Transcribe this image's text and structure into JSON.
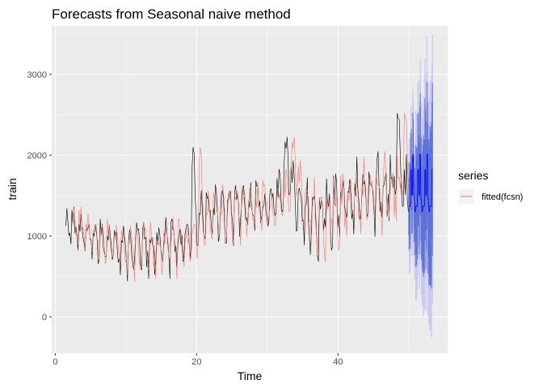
{
  "chart_data": {
    "type": "line",
    "title": "Forecasts from Seasonal naive method",
    "xlabel": "Time",
    "ylabel": "train",
    "xlim": [
      -0.5,
      55.5
    ],
    "ylim": [
      -450,
      3600
    ],
    "x_ticks": [
      0,
      20,
      40
    ],
    "x_tick_labels": [
      "0",
      "20",
      "40"
    ],
    "y_ticks": [
      0,
      1000,
      2000,
      3000
    ],
    "y_tick_labels": [
      "0",
      "1000",
      "2000",
      "3000"
    ],
    "grid": true,
    "legend": {
      "title": "series",
      "position": "right",
      "entries": [
        {
          "label": "fitted(fcsn)",
          "color": "#F8766D"
        }
      ]
    },
    "series": [
      {
        "role": "observed",
        "color": "#000000",
        "x_start": 1.5,
        "x_step": 0.1429,
        "y_min": 420,
        "y_max": 2660,
        "trend": [
          [
            1.5,
            1150
          ],
          [
            9,
            850
          ],
          [
            19,
            950
          ],
          [
            20,
            1250
          ],
          [
            30,
            1380
          ],
          [
            33,
            1500
          ],
          [
            36,
            1200
          ],
          [
            40,
            1350
          ],
          [
            46,
            1600
          ],
          [
            50,
            1550
          ]
        ],
        "amplitude": [
          [
            1.5,
            250
          ],
          [
            12,
            400
          ],
          [
            30,
            400
          ],
          [
            36,
            500
          ],
          [
            50,
            550
          ]
        ]
      },
      {
        "role": "fitted(fcsn)",
        "color": "#F8766D",
        "lag_weeks": 1
      },
      {
        "role": "forecast",
        "color": "#0000FF",
        "x_start": 50,
        "x_end": 53.4,
        "values_range": [
          700,
          2300
        ],
        "interval_80": {
          "color": "#596DD5",
          "low_min": 350,
          "high_max": 2900
        },
        "interval_95": {
          "color": "#C8C8F0",
          "low_min": -250,
          "high_max": 3500
        }
      }
    ]
  }
}
